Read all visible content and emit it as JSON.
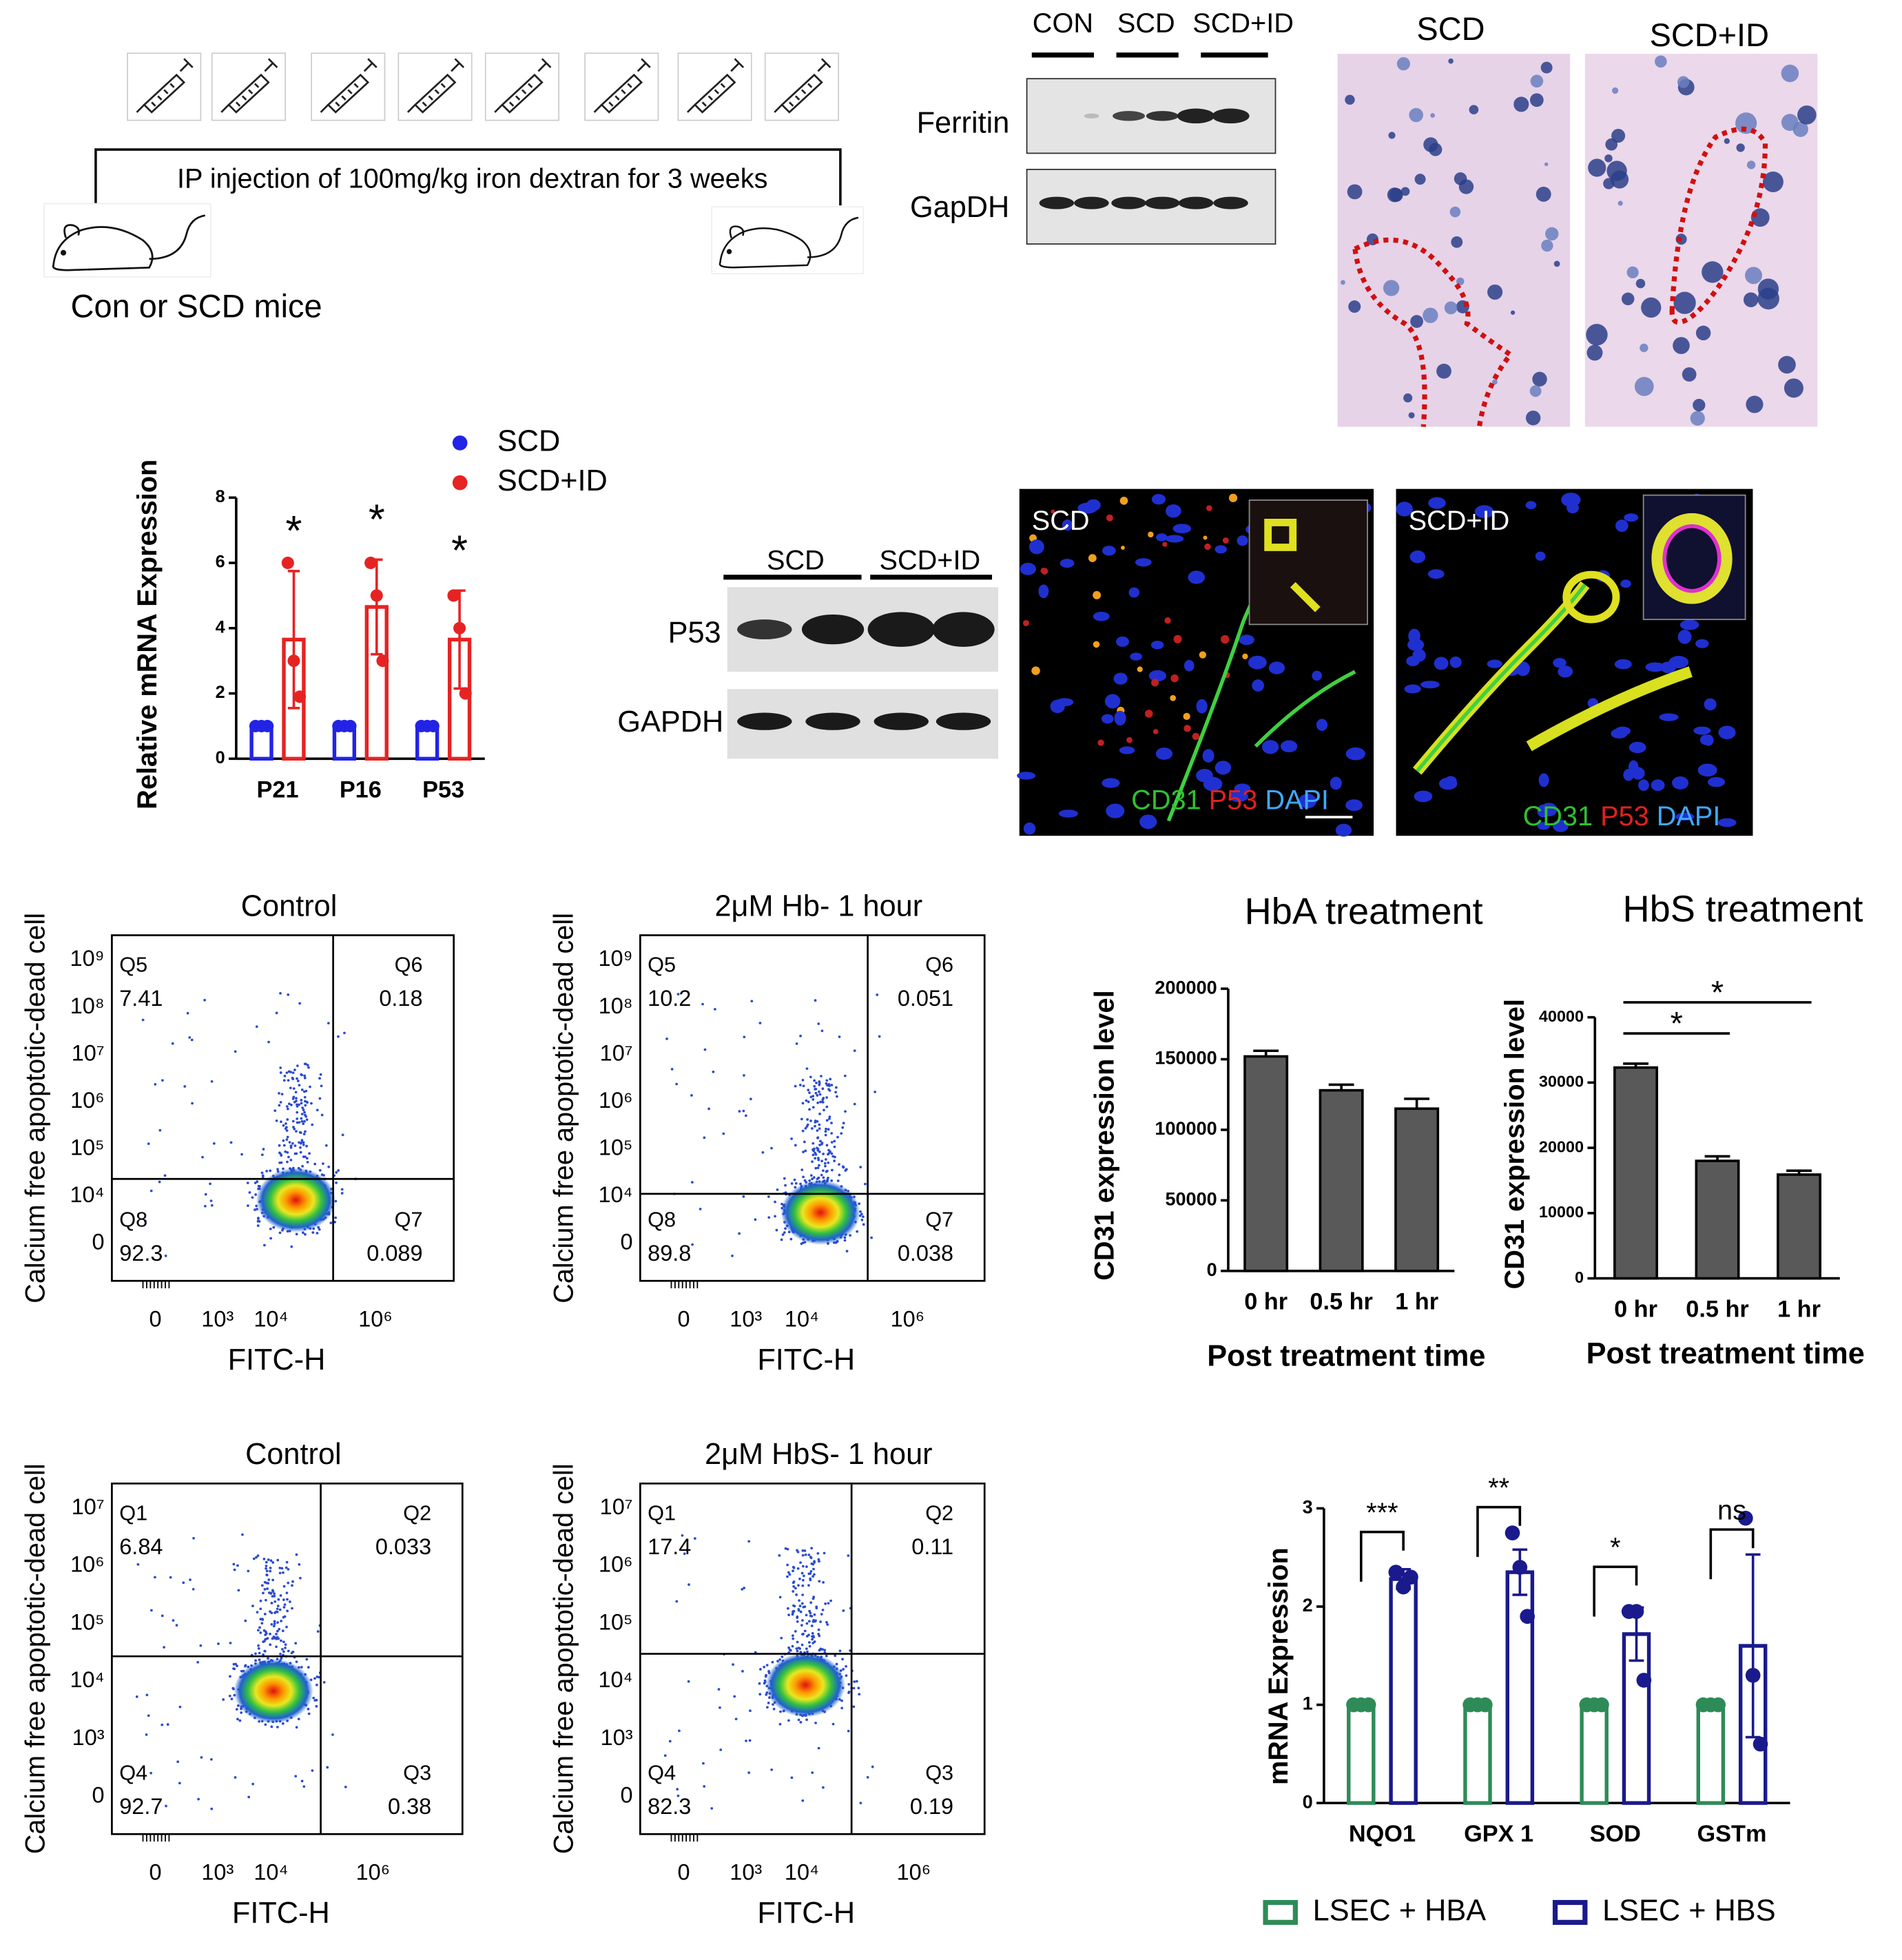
{
  "schematic": {
    "injection": "IP injection of 100mg/kg iron dextran for 3 weeks",
    "mice": "Con or SCD mice"
  },
  "ferritin_blot": {
    "groups": [
      "CON",
      "SCD",
      "SCD+ID"
    ],
    "rows": [
      "Ferritin",
      "GapDH"
    ]
  },
  "histology": {
    "panels": [
      "SCD",
      "SCD+ID"
    ]
  },
  "p53_blot": {
    "groups": [
      "SCD",
      "SCD+ID"
    ],
    "rows": [
      "P53",
      "GAPDH"
    ]
  },
  "immunofluorescence": {
    "panels": [
      {
        "label": "SCD",
        "stains": [
          "CD31",
          "P53",
          "DAPI"
        ]
      },
      {
        "label": "SCD+ID",
        "stains": [
          "CD31",
          "P53",
          "DAPI"
        ]
      }
    ]
  },
  "flow": [
    {
      "title": "Control",
      "xlabel": "FITC-H",
      "ylabel": "Calcium free apoptotic-dead cell",
      "xticks": [
        "0",
        "10³",
        "10⁴",
        "10⁶"
      ],
      "yticks": [
        "10⁹",
        "10⁸",
        "10⁷",
        "10⁶",
        "10⁵",
        "10⁴",
        "0"
      ],
      "quadrants": [
        {
          "label": "Q5",
          "value": 7.41
        },
        {
          "label": "Q6",
          "value": 0.18
        },
        {
          "label": "Q8",
          "value": 92.3
        },
        {
          "label": "Q7",
          "value": 0.089
        }
      ]
    },
    {
      "title": "2μM Hb- 1 hour",
      "xlabel": "FITC-H",
      "ylabel": "Calcium free apoptotic-dead cell",
      "xticks": [
        "0",
        "10³",
        "10⁴",
        "10⁶"
      ],
      "yticks": [
        "10⁹",
        "10⁸",
        "10⁷",
        "10⁶",
        "10⁵",
        "10⁴",
        "0"
      ],
      "quadrants": [
        {
          "label": "Q5",
          "value": 10.2
        },
        {
          "label": "Q6",
          "value": 0.051
        },
        {
          "label": "Q8",
          "value": 89.8
        },
        {
          "label": "Q7",
          "value": 0.038
        }
      ]
    },
    {
      "title": "Control",
      "xlabel": "FITC-H",
      "ylabel": "Calcium free apoptotic-dead cell",
      "xticks": [
        "0",
        "10³",
        "10⁴",
        "10⁶"
      ],
      "yticks": [
        "10⁷",
        "10⁶",
        "10⁵",
        "10⁴",
        "10³",
        "0"
      ],
      "quadrants": [
        {
          "label": "Q1",
          "value": 6.84
        },
        {
          "label": "Q2",
          "value": 0.033
        },
        {
          "label": "Q4",
          "value": 92.7
        },
        {
          "label": "Q3",
          "value": 0.38
        }
      ]
    },
    {
      "title": "2μM HbS- 1 hour",
      "xlabel": "FITC-H",
      "ylabel": "Calcium free apoptotic-dead cell",
      "xticks": [
        "0",
        "10³",
        "10⁴",
        "10⁶"
      ],
      "yticks": [
        "10⁷",
        "10⁶",
        "10⁵",
        "10⁴",
        "10³",
        "0"
      ],
      "quadrants": [
        {
          "label": "Q1",
          "value": 17.4
        },
        {
          "label": "Q2",
          "value": 0.11
        },
        {
          "label": "Q4",
          "value": 82.3
        },
        {
          "label": "Q3",
          "value": 0.19
        }
      ]
    }
  ],
  "chart_data": [
    {
      "type": "bar",
      "bar_style": "outline",
      "ylabel": "Relative mRNA Expression",
      "categories": [
        "P21",
        "P16",
        "P53"
      ],
      "series": [
        {
          "name": "SCD",
          "color": "#2323e6",
          "values": [
            1,
            1,
            1
          ],
          "points": [
            [
              1,
              1,
              1
            ],
            [
              1,
              1,
              1
            ],
            [
              1,
              1,
              1
            ]
          ]
        },
        {
          "name": "SCD+ID",
          "color": "#e62323",
          "values": [
            3.65,
            4.65,
            3.65
          ],
          "errors": [
            2.1,
            1.45,
            1.5
          ],
          "points": [
            [
              6.0,
              3.0,
              1.9
            ],
            [
              6.0,
              5.0,
              3.0
            ],
            [
              5.0,
              4.0,
              2.0
            ]
          ]
        }
      ],
      "ylim": [
        0,
        8
      ],
      "yticks": [
        0,
        2,
        4,
        6,
        8
      ],
      "annotations": [
        "*",
        "*",
        "*"
      ]
    },
    {
      "type": "bar",
      "bar_style": "filled",
      "title": "HbA treatment",
      "ylabel": "CD31 expression level",
      "xlabel": "Post treatment time",
      "categories": [
        "0 hr",
        "0.5 hr",
        "1 hr"
      ],
      "series": [
        {
          "color": "#595959",
          "values": [
            152000,
            128000,
            115000
          ],
          "errors": [
            4000,
            4000,
            7000
          ]
        }
      ],
      "ylim": [
        0,
        200000
      ],
      "yticks": [
        0,
        50000,
        100000,
        150000,
        200000
      ]
    },
    {
      "type": "bar",
      "bar_style": "filled",
      "title": "HbS treatment",
      "ylabel": "CD31 expression level",
      "xlabel": "Post treatment time",
      "categories": [
        "0 hr",
        "0.5 hr",
        "1 hr"
      ],
      "series": [
        {
          "color": "#595959",
          "values": [
            32300,
            18000,
            15900
          ],
          "errors": [
            600,
            700,
            600
          ]
        }
      ],
      "ylim": [
        0,
        40000
      ],
      "yticks": [
        0,
        10000,
        20000,
        30000,
        40000
      ],
      "annotations": [
        "*",
        "*"
      ]
    },
    {
      "type": "bar",
      "bar_style": "outline",
      "ylabel": "mRNA Expression",
      "categories": [
        "NQO1",
        "GPX 1",
        "SOD",
        "GSTm"
      ],
      "series": [
        {
          "name": "LSEC + HBA",
          "color": "#2e8b57",
          "values": [
            1,
            1,
            1,
            1
          ],
          "points": [
            [
              1,
              1,
              1
            ],
            [
              1,
              1,
              1
            ],
            [
              1,
              1,
              1
            ],
            [
              1,
              1,
              1
            ]
          ]
        },
        {
          "name": "LSEC + HBS",
          "color": "#1a1a8c",
          "values": [
            2.28,
            2.35,
            1.72,
            1.6
          ],
          "errors": [
            0.1,
            0.23,
            0.27,
            0.93
          ],
          "points": [
            [
              2.35,
              2.2,
              2.3
            ],
            [
              2.75,
              2.4,
              1.9
            ],
            [
              1.95,
              1.95,
              1.25
            ],
            [
              2.9,
              1.3,
              0.6
            ]
          ]
        }
      ],
      "ylim": [
        0,
        3
      ],
      "yticks": [
        0,
        1,
        2,
        3
      ],
      "annotations": [
        "***",
        "**",
        "*",
        "ns"
      ]
    }
  ]
}
